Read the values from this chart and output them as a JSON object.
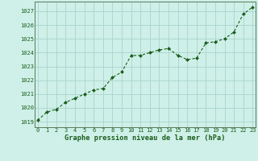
{
  "x": [
    0,
    1,
    2,
    3,
    4,
    5,
    6,
    7,
    8,
    9,
    10,
    11,
    12,
    13,
    14,
    15,
    16,
    17,
    18,
    19,
    20,
    21,
    22,
    23
  ],
  "y": [
    1019.1,
    1019.7,
    1019.9,
    1020.4,
    1020.7,
    1021.0,
    1021.3,
    1021.4,
    1022.2,
    1022.6,
    1023.8,
    1023.8,
    1024.0,
    1024.2,
    1024.3,
    1023.8,
    1023.5,
    1023.6,
    1024.7,
    1024.8,
    1025.0,
    1025.5,
    1026.8,
    1027.3
  ],
  "line_color": "#1a5c1a",
  "marker": "D",
  "marker_size": 2.0,
  "bg_color": "#cef0e8",
  "grid_color": "#aad4cc",
  "ylabel_ticks": [
    1019,
    1020,
    1021,
    1022,
    1023,
    1024,
    1025,
    1026,
    1027
  ],
  "xlabel_ticks": [
    0,
    1,
    2,
    3,
    4,
    5,
    6,
    7,
    8,
    9,
    10,
    11,
    12,
    13,
    14,
    15,
    16,
    17,
    18,
    19,
    20,
    21,
    22,
    23
  ],
  "xlabel_label": "Graphe pression niveau de la mer (hPa)",
  "ylim": [
    1018.6,
    1027.7
  ],
  "xlim": [
    -0.3,
    23.3
  ],
  "tick_label_color": "#1a5c1a",
  "xlabel_color": "#1a5c1a",
  "tick_fontsize": 5.0,
  "xlabel_fontsize": 6.2
}
